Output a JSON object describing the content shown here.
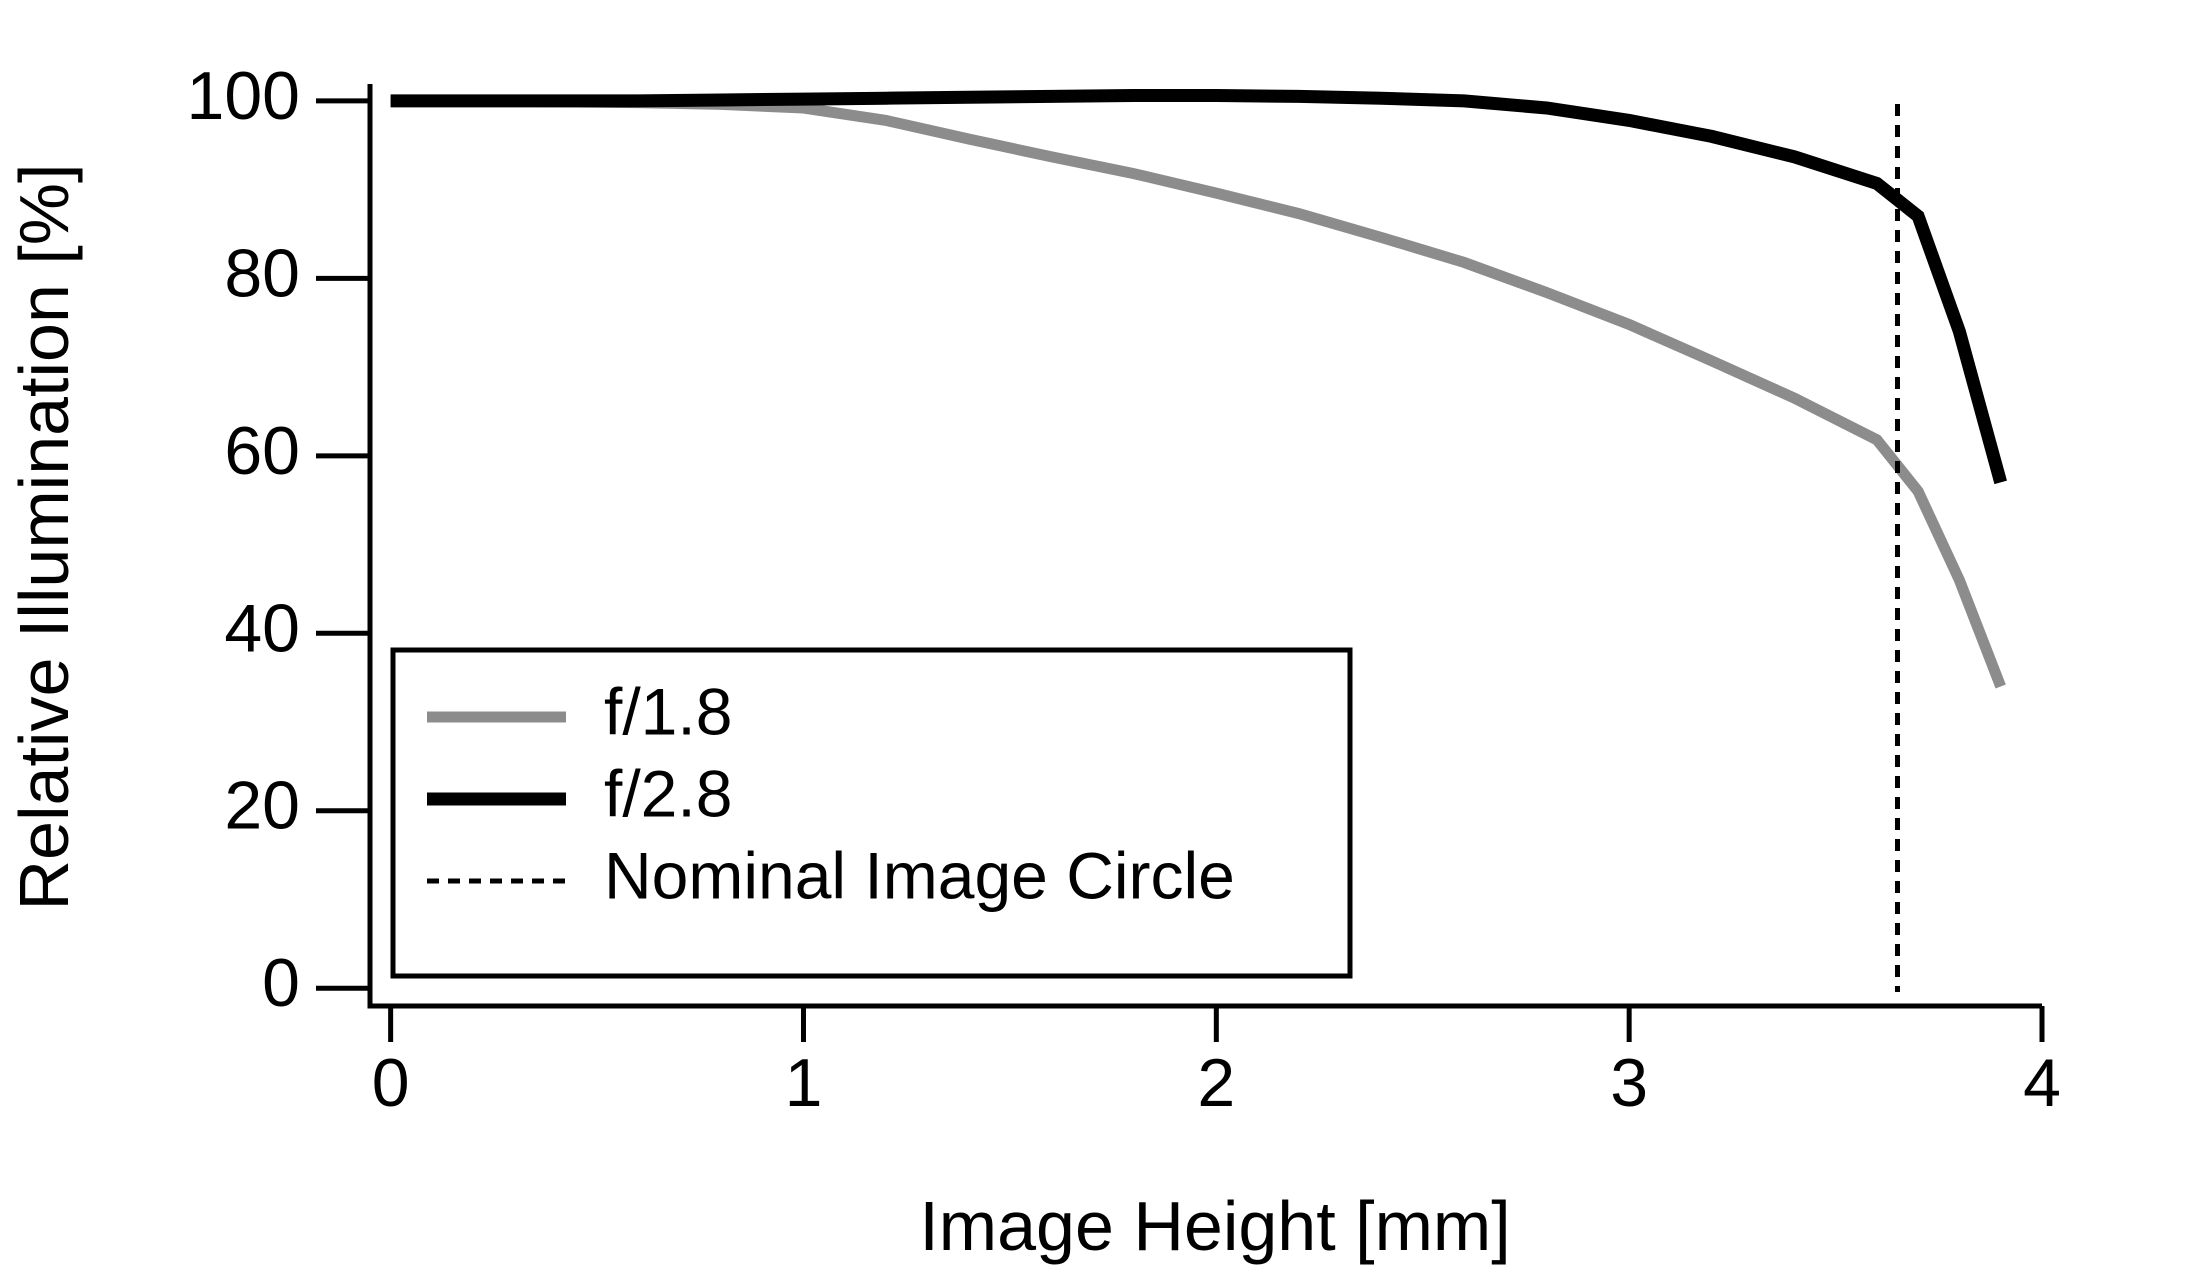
{
  "chart_data": {
    "type": "line",
    "x_label": "Image Height [mm]",
    "y_label": "Relative Illumination [%]",
    "x": [
      0,
      0.2,
      0.4,
      0.6,
      0.8,
      1.0,
      1.2,
      1.4,
      1.6,
      1.8,
      2.0,
      2.2,
      2.4,
      2.6,
      2.8,
      3.0,
      3.2,
      3.4,
      3.6,
      3.7,
      3.8,
      3.9
    ],
    "series": [
      {
        "name": "f/1.8",
        "color": "#8c8c8c",
        "values": [
          100,
          100,
          99.9,
          99.8,
          99.6,
          99.2,
          97.8,
          95.7,
          93.7,
          91.8,
          89.6,
          87.3,
          84.6,
          81.8,
          78.4,
          74.8,
          70.7,
          66.5,
          61.8,
          56,
          46,
          34
        ]
      },
      {
        "name": "f/2.8",
        "color": "#000000",
        "values": [
          100,
          100,
          100,
          100,
          100.1,
          100.2,
          100.3,
          100.4,
          100.5,
          100.6,
          100.6,
          100.5,
          100.3,
          100,
          99.2,
          97.8,
          96,
          93.7,
          90.7,
          87,
          74,
          57
        ]
      }
    ],
    "vlines": [
      {
        "x": 3.65,
        "name": "Nominal Image Circle",
        "color": "#000000"
      }
    ],
    "xlim": [
      -0.05,
      4.0
    ],
    "ylim": [
      -2,
      101.9
    ],
    "xticks": [
      0,
      1,
      2,
      3,
      4
    ],
    "yticks": [
      0,
      20,
      40,
      60,
      80,
      100
    ],
    "legend": "lower left",
    "grid": false
  }
}
